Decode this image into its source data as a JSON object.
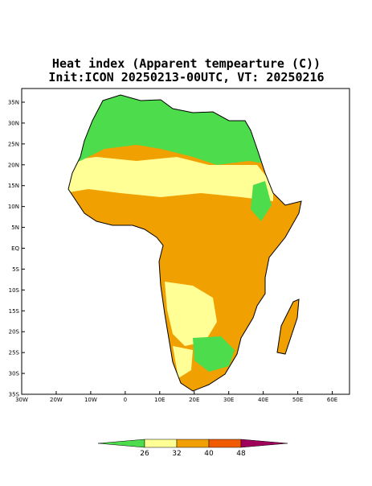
{
  "title": "Heat index (Apparent tempearture (C))",
  "subtitle": "Init:ICON 20250213-00UTC, VT: 20250216",
  "lat_labels": [
    "35N",
    "30N",
    "25N",
    "20N",
    "15N",
    "10N",
    "5N",
    "EQ",
    "5S",
    "10S",
    "15S",
    "20S",
    "25S",
    "30S",
    "35S"
  ],
  "lon_labels": [
    "30W",
    "20W",
    "10W",
    "0",
    "10E",
    "20E",
    "30E",
    "40E",
    "50E",
    "60E"
  ],
  "colorbar": {
    "colors": [
      "#4cdc4c",
      "#ffff96",
      "#f0a000",
      "#f05a00",
      "#a0005a"
    ],
    "labels": [
      26,
      32,
      40,
      48
    ]
  }
}
